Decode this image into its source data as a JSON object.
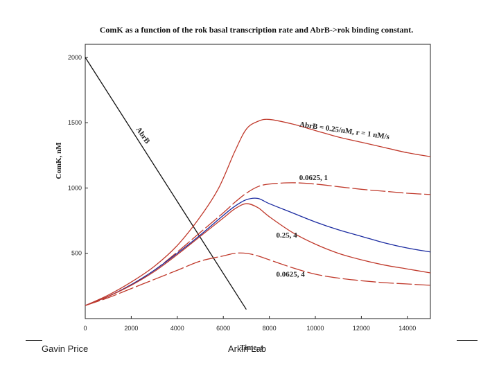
{
  "footer": {
    "left": "Gavin Price",
    "center": "Arkin Lab"
  },
  "chart_data": {
    "type": "line",
    "title": "ComK as a function of the rok basal transcription rate and AbrB->rok binding constant.",
    "xlabel": "Time, s",
    "ylabel": "ComK, nM",
    "xlim": [
      0,
      15000
    ],
    "ylim": [
      0,
      2100
    ],
    "xticks": [
      0,
      2000,
      4000,
      6000,
      8000,
      10000,
      12000,
      14000
    ],
    "yticks": [
      500,
      1000,
      1500,
      2000
    ],
    "series": [
      {
        "name": "AbrB",
        "color": "#111111",
        "dash": "",
        "x": [
          0,
          7000
        ],
        "y": [
          2000,
          70
        ]
      },
      {
        "name": "AbrB = 0.25/nM, r = 1 nM/s",
        "color": "#c0392b",
        "dash": "",
        "x": [
          0,
          1000,
          2000,
          3000,
          4000,
          5000,
          5800,
          6500,
          7000,
          7500,
          8000,
          9000,
          10000,
          11000,
          12000,
          13000,
          14000,
          15000
        ],
        "y": [
          100,
          180,
          280,
          400,
          560,
          780,
          1000,
          1280,
          1450,
          1510,
          1525,
          1490,
          1440,
          1390,
          1350,
          1310,
          1270,
          1240
        ]
      },
      {
        "name": "0.0625, 1",
        "color": "#c0392b",
        "dash": "22 4",
        "x": [
          0,
          1000,
          2000,
          3000,
          4000,
          5000,
          6000,
          6500,
          7000,
          7500,
          8000,
          9000,
          10000,
          11000,
          12000,
          13000,
          14000,
          15000
        ],
        "y": [
          100,
          170,
          260,
          370,
          510,
          660,
          810,
          890,
          960,
          1010,
          1030,
          1040,
          1030,
          1010,
          990,
          975,
          960,
          950
        ]
      },
      {
        "name": "blue",
        "color": "#1a2aa0",
        "dash": "",
        "x": [
          0,
          1000,
          2000,
          3000,
          4000,
          5000,
          6000,
          6500,
          7000,
          7500,
          8000,
          9000,
          10000,
          11000,
          12000,
          13000,
          14000,
          15000
        ],
        "y": [
          100,
          170,
          260,
          370,
          500,
          640,
          790,
          860,
          910,
          920,
          880,
          810,
          740,
          680,
          630,
          580,
          540,
          510
        ]
      },
      {
        "name": "0.25, 4",
        "color": "#c0392b",
        "dash": "",
        "x": [
          0,
          1000,
          2000,
          3000,
          4000,
          5000,
          6000,
          6500,
          7000,
          7500,
          8000,
          9000,
          10000,
          11000,
          12000,
          13000,
          14000,
          15000
        ],
        "y": [
          100,
          170,
          255,
          360,
          490,
          630,
          770,
          840,
          880,
          850,
          780,
          660,
          570,
          500,
          450,
          410,
          380,
          350
        ]
      },
      {
        "name": "0.0625, 4",
        "color": "#c0392b",
        "dash": "22 4",
        "x": [
          0,
          1000,
          2000,
          3000,
          4000,
          5000,
          6000,
          6500,
          7000,
          7500,
          8000,
          9000,
          10000,
          11000,
          12000,
          13000,
          14000,
          15000
        ],
        "y": [
          100,
          160,
          230,
          300,
          370,
          440,
          480,
          500,
          500,
          480,
          450,
          390,
          340,
          310,
          290,
          275,
          265,
          255
        ]
      }
    ],
    "annotations": [
      {
        "text": "AbrB",
        "x": 2200,
        "y": 1450,
        "rotate": 55
      },
      {
        "text": "AbrB = 0.25/nM, r = 1 nM/s",
        "x": 9300,
        "y": 1470,
        "rotate": 8
      },
      {
        "text": "0.0625, 1",
        "x": 9300,
        "y": 1060
      },
      {
        "text": "0.25, 4",
        "x": 8300,
        "y": 620
      },
      {
        "text": "0.0625, 4",
        "x": 8300,
        "y": 320
      }
    ]
  }
}
